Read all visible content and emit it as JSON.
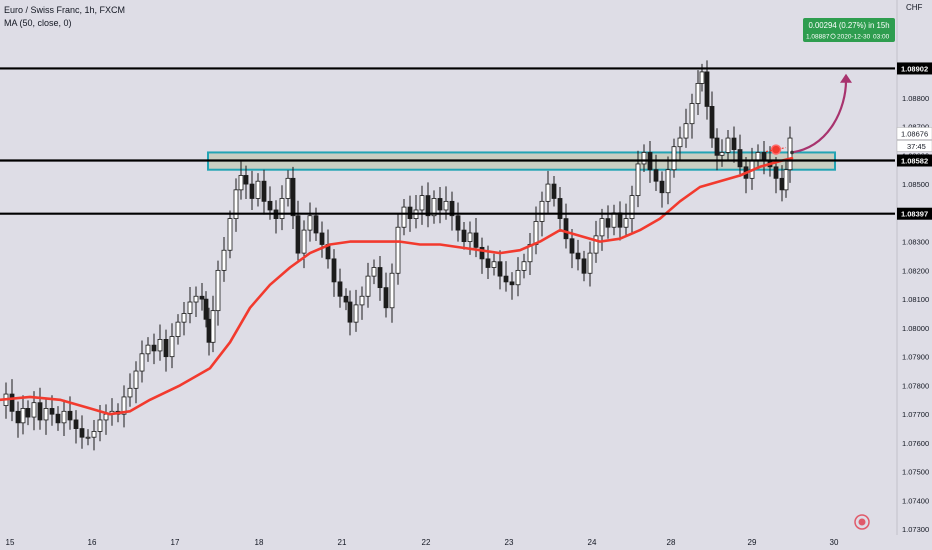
{
  "header": {
    "symbol_line": "Euro / Swiss Franc, 1h, FXCM",
    "indicator_line": "MA (50, close, 0)"
  },
  "colors": {
    "background": "#dedde6",
    "candle": "#1c1c1c",
    "ma_line": "#f23a2e",
    "zone_border": "#23a4b4",
    "zone_fill": "#c9cec2",
    "arrow": "#a8336e",
    "projection_box": "#2e9d4f",
    "level_line": "#000000",
    "axis_text": "#131722"
  },
  "price_axis": {
    "currency": "CHF",
    "ticks": [
      "1.08900",
      "1.08800",
      "1.08700",
      "1.08600",
      "1.08500",
      "1.08400",
      "1.08300",
      "1.08200",
      "1.08100",
      "1.08000",
      "1.07900",
      "1.07800",
      "1.07700",
      "1.07600",
      "1.07500",
      "1.07400",
      "1.07300"
    ],
    "countdown": "37:45"
  },
  "time_axis": {
    "labels": [
      "15",
      "16",
      "17",
      "18",
      "21",
      "22",
      "23",
      "24",
      "28",
      "29",
      "30"
    ]
  },
  "chart_data": {
    "type": "candlestick",
    "title": "Euro / Swiss Franc, 1h, FXCM",
    "indicator": "MA (50, close, 0)",
    "ylim": [
      1.0728,
      1.0914
    ],
    "x_dates": [
      "15",
      "16",
      "17",
      "18",
      "21",
      "22",
      "23",
      "24",
      "28",
      "29",
      "30"
    ],
    "levels": [
      {
        "value": 1.08902,
        "label": "1.08902"
      },
      {
        "value": 1.08582,
        "label": "1.08582"
      },
      {
        "value": 1.08397,
        "label": "1.08397"
      }
    ],
    "current_price": {
      "value": 1.08676,
      "label": "1.08676"
    },
    "zone": {
      "low": 1.0855,
      "high": 1.0861
    },
    "projection": {
      "change_text": "0.00294 (0.27%) in 15h",
      "target_text": "1.08887",
      "date_text": "2020-12-30",
      "time_text": "03:00"
    },
    "price_path": [
      {
        "x": 0,
        "y": 1.0773
      },
      {
        "x": 6,
        "y": 1.0777
      },
      {
        "x": 12,
        "y": 1.0771
      },
      {
        "x": 18,
        "y": 1.0767
      },
      {
        "x": 23,
        "y": 1.0772
      },
      {
        "x": 28,
        "y": 1.0769
      },
      {
        "x": 34,
        "y": 1.0774
      },
      {
        "x": 40,
        "y": 1.0768
      },
      {
        "x": 46,
        "y": 1.0772
      },
      {
        "x": 52,
        "y": 1.077
      },
      {
        "x": 58,
        "y": 1.0767
      },
      {
        "x": 64,
        "y": 1.0771
      },
      {
        "x": 70,
        "y": 1.0768
      },
      {
        "x": 76,
        "y": 1.0765
      },
      {
        "x": 82,
        "y": 1.0762
      },
      {
        "x": 88,
        "y": 1.0762
      },
      {
        "x": 94,
        "y": 1.0764
      },
      {
        "x": 100,
        "y": 1.0768
      },
      {
        "x": 106,
        "y": 1.077
      },
      {
        "x": 112,
        "y": 1.0771
      },
      {
        "x": 118,
        "y": 1.077
      },
      {
        "x": 124,
        "y": 1.0776
      },
      {
        "x": 130,
        "y": 1.0779
      },
      {
        "x": 136,
        "y": 1.0785
      },
      {
        "x": 142,
        "y": 1.0791
      },
      {
        "x": 148,
        "y": 1.0794
      },
      {
        "x": 154,
        "y": 1.0792
      },
      {
        "x": 160,
        "y": 1.0796
      },
      {
        "x": 166,
        "y": 1.079
      },
      {
        "x": 172,
        "y": 1.0797
      },
      {
        "x": 178,
        "y": 1.0802
      },
      {
        "x": 184,
        "y": 1.0805
      },
      {
        "x": 190,
        "y": 1.0809
      },
      {
        "x": 196,
        "y": 1.0811
      },
      {
        "x": 202,
        "y": 1.081
      },
      {
        "x": 206,
        "y": 1.0803
      },
      {
        "x": 209,
        "y": 1.0795
      },
      {
        "x": 213,
        "y": 1.0806
      },
      {
        "x": 218,
        "y": 1.082
      },
      {
        "x": 224,
        "y": 1.0827
      },
      {
        "x": 230,
        "y": 1.0838
      },
      {
        "x": 236,
        "y": 1.0848
      },
      {
        "x": 241,
        "y": 1.0853
      },
      {
        "x": 246,
        "y": 1.085
      },
      {
        "x": 252,
        "y": 1.0845
      },
      {
        "x": 258,
        "y": 1.0851
      },
      {
        "x": 264,
        "y": 1.0844
      },
      {
        "x": 270,
        "y": 1.0841
      },
      {
        "x": 276,
        "y": 1.0838
      },
      {
        "x": 282,
        "y": 1.0845
      },
      {
        "x": 288,
        "y": 1.0852
      },
      {
        "x": 293,
        "y": 1.0839
      },
      {
        "x": 298,
        "y": 1.0826
      },
      {
        "x": 304,
        "y": 1.0834
      },
      {
        "x": 310,
        "y": 1.0839
      },
      {
        "x": 316,
        "y": 1.0833
      },
      {
        "x": 322,
        "y": 1.0829
      },
      {
        "x": 328,
        "y": 1.0824
      },
      {
        "x": 334,
        "y": 1.0816
      },
      {
        "x": 340,
        "y": 1.0811
      },
      {
        "x": 346,
        "y": 1.0809
      },
      {
        "x": 350,
        "y": 1.0802
      },
      {
        "x": 356,
        "y": 1.0808
      },
      {
        "x": 362,
        "y": 1.0811
      },
      {
        "x": 368,
        "y": 1.0818
      },
      {
        "x": 374,
        "y": 1.0821
      },
      {
        "x": 380,
        "y": 1.0814
      },
      {
        "x": 386,
        "y": 1.0807
      },
      {
        "x": 392,
        "y": 1.0819
      },
      {
        "x": 398,
        "y": 1.0835
      },
      {
        "x": 404,
        "y": 1.0842
      },
      {
        "x": 410,
        "y": 1.0838
      },
      {
        "x": 416,
        "y": 1.0841
      },
      {
        "x": 422,
        "y": 1.0846
      },
      {
        "x": 428,
        "y": 1.0839
      },
      {
        "x": 434,
        "y": 1.0845
      },
      {
        "x": 440,
        "y": 1.0841
      },
      {
        "x": 446,
        "y": 1.0844
      },
      {
        "x": 452,
        "y": 1.0839
      },
      {
        "x": 458,
        "y": 1.0834
      },
      {
        "x": 464,
        "y": 1.083
      },
      {
        "x": 470,
        "y": 1.0833
      },
      {
        "x": 476,
        "y": 1.0828
      },
      {
        "x": 482,
        "y": 1.0824
      },
      {
        "x": 488,
        "y": 1.0821
      },
      {
        "x": 494,
        "y": 1.0823
      },
      {
        "x": 500,
        "y": 1.0818
      },
      {
        "x": 506,
        "y": 1.0816
      },
      {
        "x": 512,
        "y": 1.0815
      },
      {
        "x": 518,
        "y": 1.082
      },
      {
        "x": 524,
        "y": 1.0823
      },
      {
        "x": 530,
        "y": 1.0829
      },
      {
        "x": 536,
        "y": 1.0837
      },
      {
        "x": 542,
        "y": 1.0844
      },
      {
        "x": 548,
        "y": 1.085
      },
      {
        "x": 554,
        "y": 1.0845
      },
      {
        "x": 560,
        "y": 1.0838
      },
      {
        "x": 566,
        "y": 1.0831
      },
      {
        "x": 572,
        "y": 1.0826
      },
      {
        "x": 578,
        "y": 1.0824
      },
      {
        "x": 584,
        "y": 1.0819
      },
      {
        "x": 590,
        "y": 1.0826
      },
      {
        "x": 596,
        "y": 1.0832
      },
      {
        "x": 602,
        "y": 1.0838
      },
      {
        "x": 608,
        "y": 1.0835
      },
      {
        "x": 614,
        "y": 1.084
      },
      {
        "x": 620,
        "y": 1.0835
      },
      {
        "x": 626,
        "y": 1.0838
      },
      {
        "x": 632,
        "y": 1.0846
      },
      {
        "x": 638,
        "y": 1.0857
      },
      {
        "x": 644,
        "y": 1.0861
      },
      {
        "x": 650,
        "y": 1.0855
      },
      {
        "x": 656,
        "y": 1.0851
      },
      {
        "x": 662,
        "y": 1.0847
      },
      {
        "x": 668,
        "y": 1.0855
      },
      {
        "x": 674,
        "y": 1.0863
      },
      {
        "x": 680,
        "y": 1.0866
      },
      {
        "x": 686,
        "y": 1.0871
      },
      {
        "x": 692,
        "y": 1.0878
      },
      {
        "x": 698,
        "y": 1.0885
      },
      {
        "x": 702,
        "y": 1.0889
      },
      {
        "x": 707,
        "y": 1.0877
      },
      {
        "x": 712,
        "y": 1.0866
      },
      {
        "x": 717,
        "y": 1.086
      },
      {
        "x": 722,
        "y": 1.0861
      },
      {
        "x": 728,
        "y": 1.0866
      },
      {
        "x": 734,
        "y": 1.0862
      },
      {
        "x": 740,
        "y": 1.0856
      },
      {
        "x": 746,
        "y": 1.0852
      },
      {
        "x": 752,
        "y": 1.0858
      },
      {
        "x": 758,
        "y": 1.0861
      },
      {
        "x": 764,
        "y": 1.0858
      },
      {
        "x": 770,
        "y": 1.0856
      },
      {
        "x": 776,
        "y": 1.0852
      },
      {
        "x": 782,
        "y": 1.0848
      },
      {
        "x": 786,
        "y": 1.0855
      },
      {
        "x": 790,
        "y": 1.0866
      }
    ],
    "ma_path": [
      {
        "x": 0,
        "y": 1.0775
      },
      {
        "x": 30,
        "y": 1.0776
      },
      {
        "x": 60,
        "y": 1.0775
      },
      {
        "x": 90,
        "y": 1.0772
      },
      {
        "x": 110,
        "y": 1.077
      },
      {
        "x": 130,
        "y": 1.0771
      },
      {
        "x": 150,
        "y": 1.0775
      },
      {
        "x": 180,
        "y": 1.078
      },
      {
        "x": 210,
        "y": 1.0786
      },
      {
        "x": 230,
        "y": 1.0795
      },
      {
        "x": 250,
        "y": 1.0807
      },
      {
        "x": 270,
        "y": 1.0815
      },
      {
        "x": 290,
        "y": 1.0821
      },
      {
        "x": 310,
        "y": 1.0826
      },
      {
        "x": 330,
        "y": 1.0829
      },
      {
        "x": 350,
        "y": 1.083
      },
      {
        "x": 380,
        "y": 1.083
      },
      {
        "x": 400,
        "y": 1.083
      },
      {
        "x": 420,
        "y": 1.0829
      },
      {
        "x": 440,
        "y": 1.0829
      },
      {
        "x": 460,
        "y": 1.0828
      },
      {
        "x": 480,
        "y": 1.0827
      },
      {
        "x": 500,
        "y": 1.0826
      },
      {
        "x": 520,
        "y": 1.0827
      },
      {
        "x": 540,
        "y": 1.083
      },
      {
        "x": 560,
        "y": 1.0834
      },
      {
        "x": 580,
        "y": 1.0832
      },
      {
        "x": 600,
        "y": 1.083
      },
      {
        "x": 620,
        "y": 1.0831
      },
      {
        "x": 640,
        "y": 1.0834
      },
      {
        "x": 660,
        "y": 1.0838
      },
      {
        "x": 680,
        "y": 1.0844
      },
      {
        "x": 700,
        "y": 1.0849
      },
      {
        "x": 720,
        "y": 1.0851
      },
      {
        "x": 740,
        "y": 1.0853
      },
      {
        "x": 760,
        "y": 1.0856
      },
      {
        "x": 780,
        "y": 1.0858
      },
      {
        "x": 792,
        "y": 1.0859
      }
    ]
  }
}
